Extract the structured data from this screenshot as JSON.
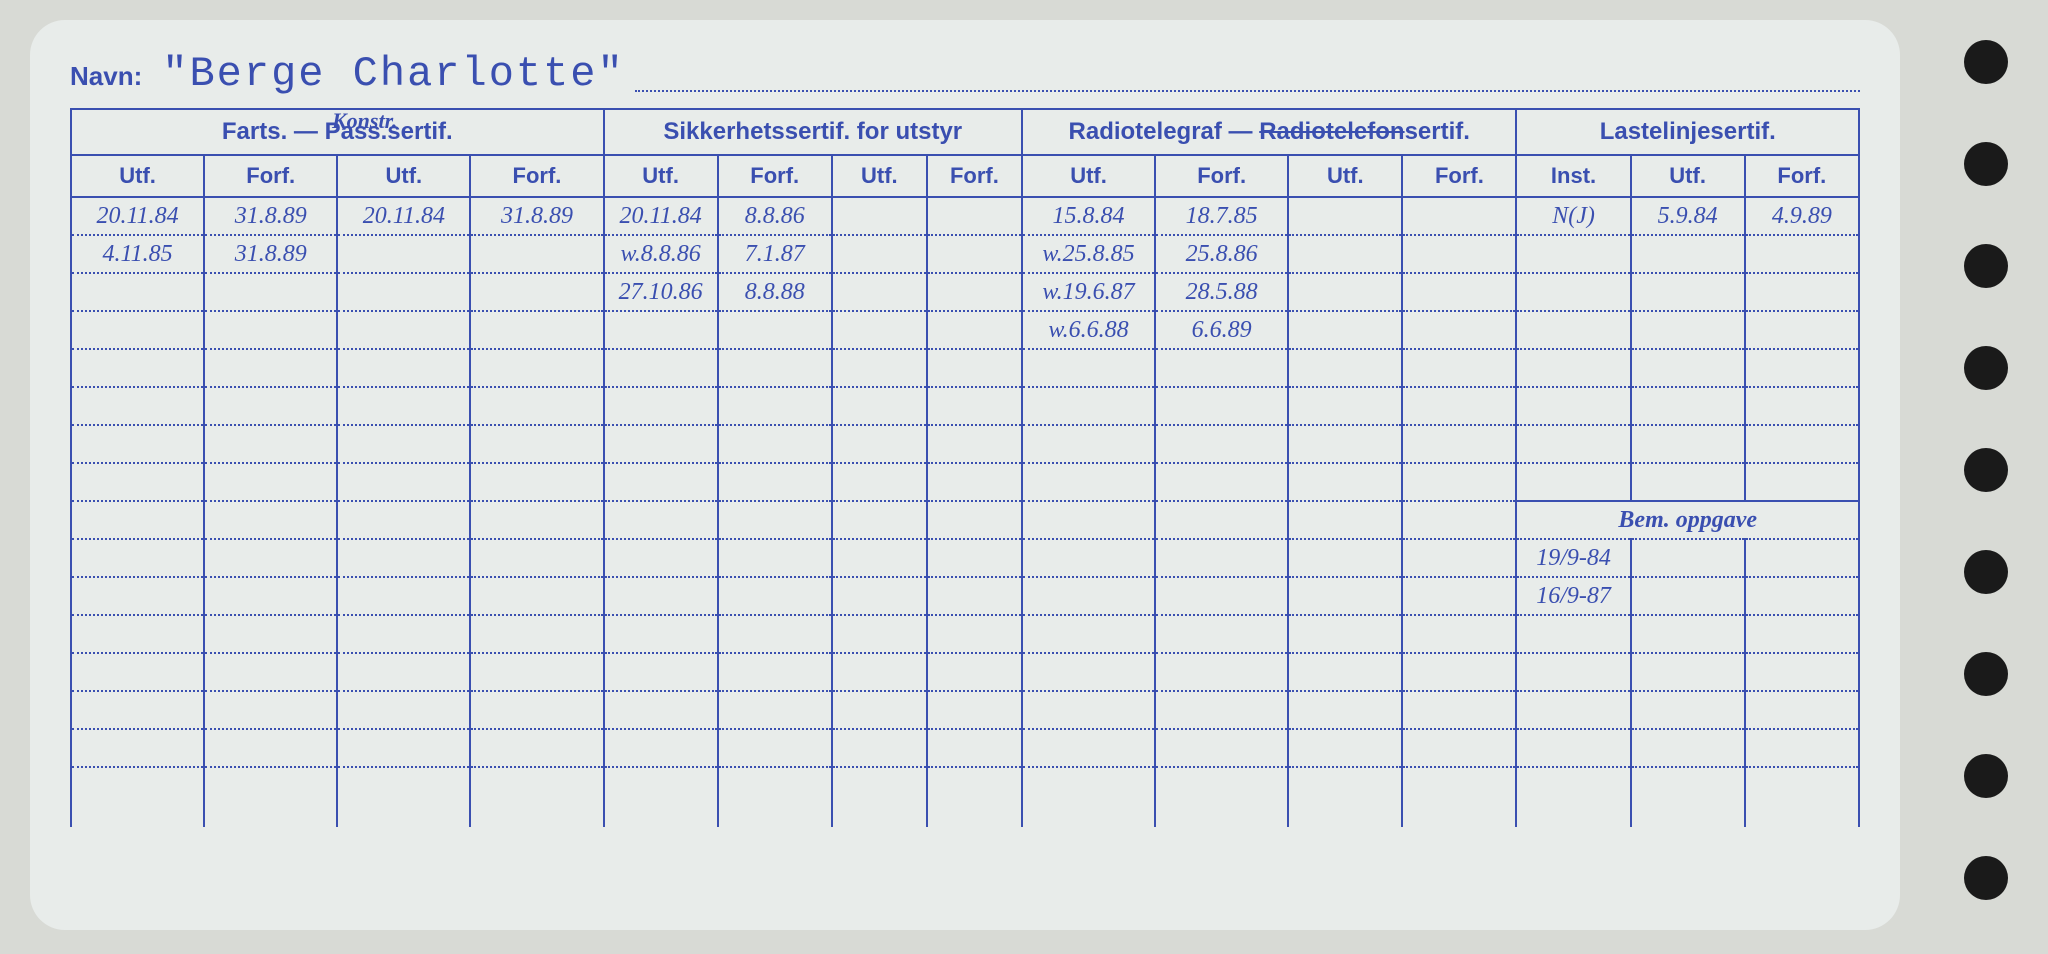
{
  "name_label": "Navn:",
  "name_value": "\"Berge Charlotte\"",
  "group_headers": {
    "farts": "Farts. — Pass.sertif.",
    "farts_annot": "Konstr.",
    "sikker": "Sikkerhetssertif. for utstyr",
    "radio": "Radiotelegraf — Radiotelefonsertif.",
    "laste": "Lastelinjesertif."
  },
  "sub_headers": {
    "utf": "Utf.",
    "forf": "Forf.",
    "inst": "Inst."
  },
  "bem_label": "Bem. oppgave",
  "cols": {
    "c1": [
      "20.11.84",
      "4.11.85",
      "",
      "",
      "",
      "",
      "",
      "",
      "",
      "",
      "",
      "",
      "",
      "",
      "",
      ""
    ],
    "c2": [
      "31.8.89",
      "31.8.89",
      "",
      "",
      "",
      "",
      "",
      "",
      "",
      "",
      "",
      "",
      "",
      "",
      "",
      ""
    ],
    "c3": [
      "20.11.84",
      "",
      "",
      "",
      "",
      "",
      "",
      "",
      "",
      "",
      "",
      "",
      "",
      "",
      "",
      ""
    ],
    "c4": [
      "31.8.89",
      "",
      "",
      "",
      "",
      "",
      "",
      "",
      "",
      "",
      "",
      "",
      "",
      "",
      "",
      ""
    ],
    "c5": [
      "20.11.84",
      "w.8.8.86",
      "27.10.86",
      "",
      "",
      "",
      "",
      "",
      "",
      "",
      "",
      "",
      "",
      "",
      "",
      ""
    ],
    "c6": [
      "8.8.86",
      "7.1.87",
      "8.8.88",
      "",
      "",
      "",
      "",
      "",
      "",
      "",
      "",
      "",
      "",
      "",
      "",
      ""
    ],
    "c7": [
      "",
      "",
      "",
      "",
      "",
      "",
      "",
      "",
      "",
      "",
      "",
      "",
      "",
      "",
      "",
      ""
    ],
    "c8": [
      "",
      "",
      "",
      "",
      "",
      "",
      "",
      "",
      "",
      "",
      "",
      "",
      "",
      "",
      "",
      ""
    ],
    "c9": [
      "15.8.84",
      "w.25.8.85",
      "w.19.6.87",
      "w.6.6.88",
      "",
      "",
      "",
      "",
      "",
      "",
      "",
      "",
      "",
      "",
      "",
      ""
    ],
    "c10": [
      "18.7.85",
      "25.8.86",
      "28.5.88",
      "6.6.89",
      "",
      "",
      "",
      "",
      "",
      "",
      "",
      "",
      "",
      "",
      "",
      ""
    ],
    "c11": [
      "",
      "",
      "",
      "",
      "",
      "",
      "",
      "",
      "",
      "",
      "",
      "",
      "",
      "",
      "",
      ""
    ],
    "c12": [
      "",
      "",
      "",
      "",
      "",
      "",
      "",
      "",
      "",
      "",
      "",
      "",
      "",
      "",
      "",
      ""
    ],
    "c13": [
      "N(J)",
      "",
      "",
      "",
      "",
      "",
      "",
      ""
    ],
    "c14": [
      "5.9.84",
      "",
      "",
      "",
      "",
      "",
      "",
      ""
    ],
    "c15": [
      "4.9.89",
      "",
      "",
      "",
      "",
      "",
      "",
      ""
    ]
  },
  "bem_rows": {
    "b1": [
      "19/9-84",
      "",
      ""
    ],
    "b2": [
      "16/9-87",
      "",
      ""
    ],
    "b3": [
      "",
      "",
      ""
    ],
    "b4": [
      "",
      "",
      ""
    ],
    "b5": [
      "",
      "",
      ""
    ],
    "b6": [
      "",
      "",
      ""
    ]
  },
  "colors": {
    "ink": "#3a4fb0",
    "card": "#e8ecea",
    "bg": "#d8dad5"
  }
}
